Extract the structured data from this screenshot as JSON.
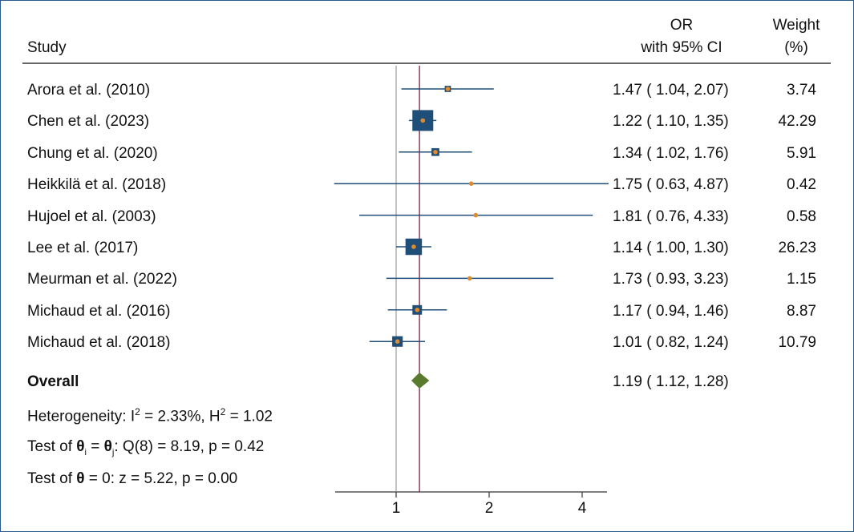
{
  "header": {
    "study": "Study",
    "or_line1": "OR",
    "or_line2": "with 95% CI",
    "weight_line1": "Weight",
    "weight_line2": "(%)"
  },
  "chart_data": {
    "type": "forest",
    "title": "",
    "xlabel": "",
    "x_scale": "log",
    "x_ticks": [
      1,
      2,
      4
    ],
    "x_tick_labels": [
      "1",
      "2",
      "4"
    ],
    "null_line": 1,
    "studies": [
      {
        "study": "Arora et al. (2010)",
        "or": 1.47,
        "lower": 1.04,
        "upper": 2.07,
        "or_text": "1.47 ( 1.04,  2.07)",
        "weight": "3.74"
      },
      {
        "study": "Chen et al. (2023)",
        "or": 1.22,
        "lower": 1.1,
        "upper": 1.35,
        "or_text": "1.22 ( 1.10,  1.35)",
        "weight": "42.29"
      },
      {
        "study": "Chung et al. (2020)",
        "or": 1.34,
        "lower": 1.02,
        "upper": 1.76,
        "or_text": "1.34 ( 1.02,  1.76)",
        "weight": "5.91"
      },
      {
        "study": "Heikkilä et al. (2018)",
        "or": 1.75,
        "lower": 0.63,
        "upper": 4.87,
        "or_text": "1.75 ( 0.63,  4.87)",
        "weight": "0.42"
      },
      {
        "study": "Hujoel et al. (2003)",
        "or": 1.81,
        "lower": 0.76,
        "upper": 4.33,
        "or_text": "1.81 ( 0.76,  4.33)",
        "weight": "0.58"
      },
      {
        "study": "Lee et al. (2017)",
        "or": 1.14,
        "lower": 1.0,
        "upper": 1.3,
        "or_text": "1.14 ( 1.00,  1.30)",
        "weight": "26.23"
      },
      {
        "study": "Meurman et al. (2022)",
        "or": 1.73,
        "lower": 0.93,
        "upper": 3.23,
        "or_text": "1.73 ( 0.93,  3.23)",
        "weight": "1.15"
      },
      {
        "study": "Michaud et al. (2016)",
        "or": 1.17,
        "lower": 0.94,
        "upper": 1.46,
        "or_text": "1.17 ( 0.94,  1.46)",
        "weight": "8.87"
      },
      {
        "study": "Michaud et al. (2018)",
        "or": 1.01,
        "lower": 0.82,
        "upper": 1.24,
        "or_text": "1.01 ( 0.82,  1.24)",
        "weight": "10.79"
      }
    ],
    "overall": {
      "label": "Overall",
      "or": 1.19,
      "lower": 1.12,
      "upper": 1.28,
      "or_text": "1.19 ( 1.12,  1.28)"
    },
    "stats": {
      "heterogeneity_prefix": "Heterogeneity: I",
      "heterogeneity_sup1": "2",
      "heterogeneity_mid": " = 2.33%, H",
      "heterogeneity_sup2": "2",
      "heterogeneity_end": " = 1.02",
      "test1_prefix": "Test of ",
      "test1_theta": "θ",
      "test1_sub_i": "i",
      "test1_eq": " = ",
      "test1_sub_j": "j",
      "test1_end": ": Q(8) = 8.19, p = 0.42",
      "test2_prefix": "Test of ",
      "test2_theta": "θ",
      "test2_end": " = 0: z = 5.22, p = 0.00"
    },
    "colors": {
      "ci_line": "#1f4e79",
      "square": "#1f4e79",
      "point": "#e08a2c",
      "diamond": "#5a7a2e",
      "overall_line": "#8b1a3a",
      "null_line": "#888888",
      "header_rule": "#333333"
    }
  }
}
